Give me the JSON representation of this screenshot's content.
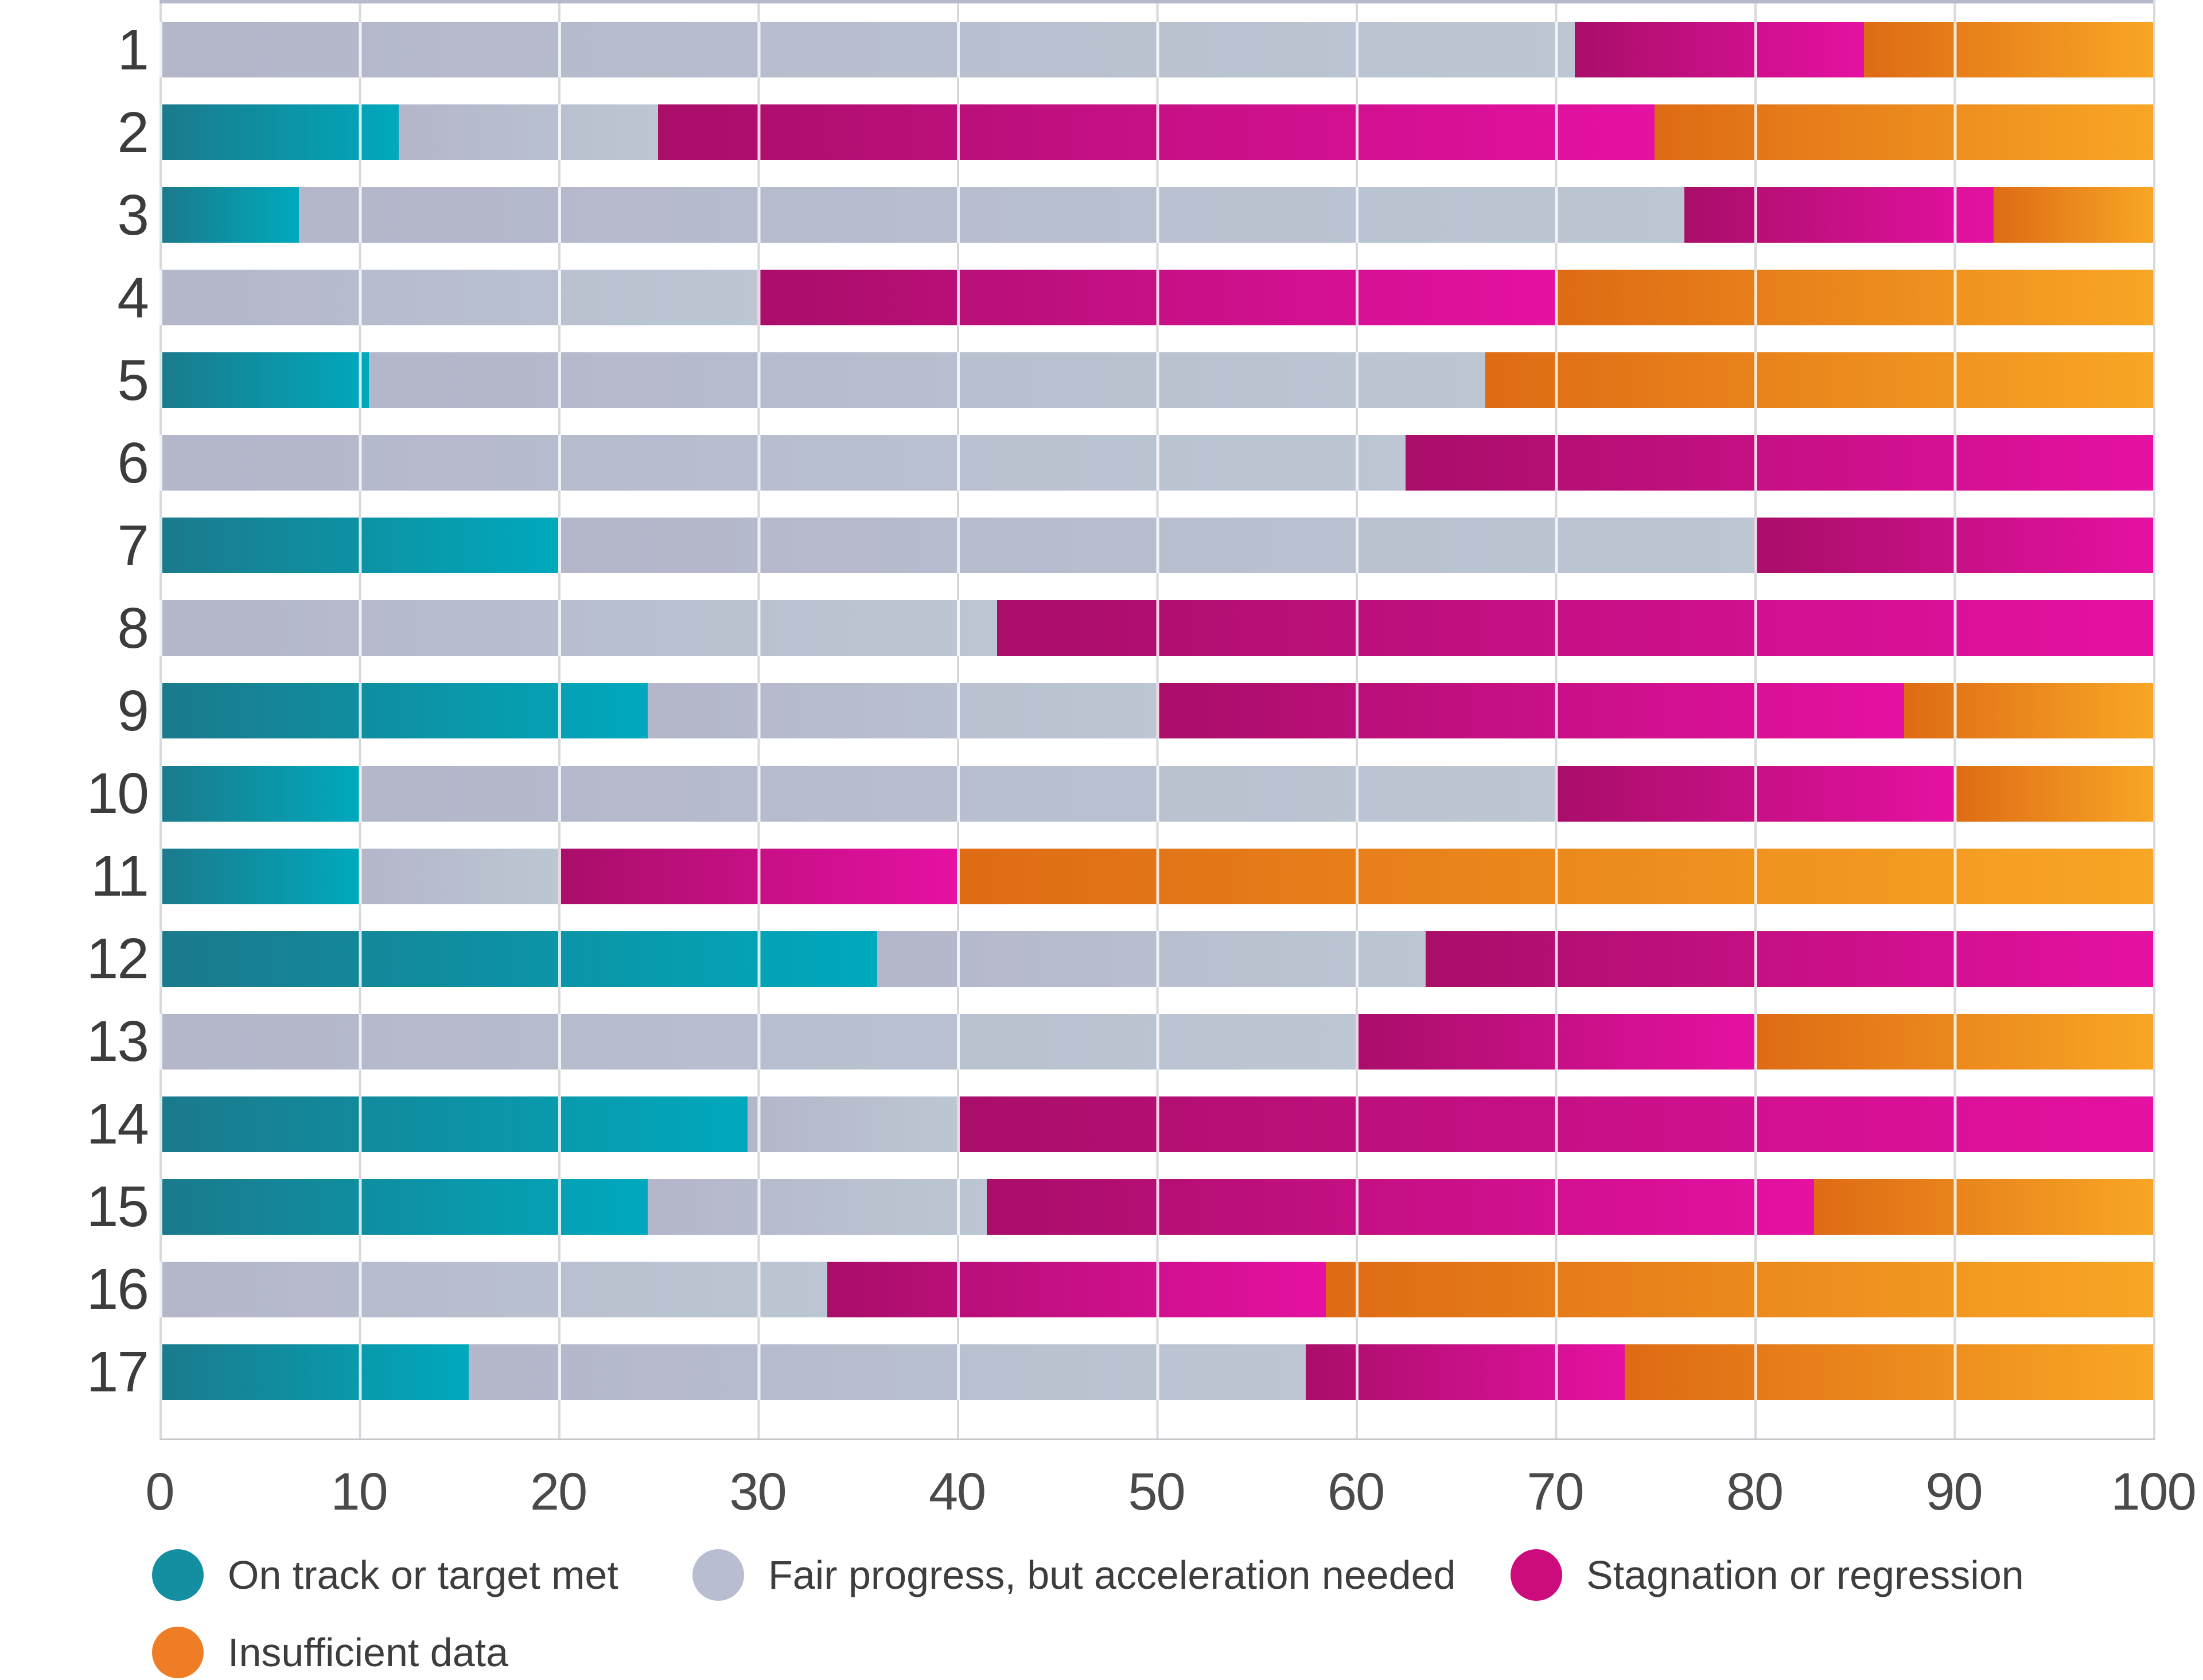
{
  "chart_data": {
    "type": "bar",
    "stacked": true,
    "orientation": "horizontal",
    "title": "",
    "xlabel": "",
    "ylabel": "",
    "xlim": [
      0,
      100
    ],
    "x_ticks": [
      0,
      10,
      20,
      30,
      40,
      50,
      60,
      70,
      80,
      90,
      100
    ],
    "grid": true,
    "legend_position": "bottom",
    "categories": [
      "1",
      "2",
      "3",
      "4",
      "5",
      "6",
      "7",
      "8",
      "9",
      "10",
      "11",
      "12",
      "13",
      "14",
      "15",
      "16",
      "17"
    ],
    "series": [
      {
        "name": "On track or target met",
        "color": "#148EA1",
        "gradient": [
          "#1B7A8C",
          "#00A9BD"
        ],
        "values": [
          0,
          12,
          7,
          0,
          10.5,
          0,
          20,
          0,
          24.5,
          10,
          10,
          36,
          0,
          29.5,
          24.5,
          0,
          15.5
        ]
      },
      {
        "name": "Fair progress, but acceleration needed",
        "color": "#B8BDD1",
        "gradient": [
          "#B4B6CA",
          "#BCC7D3"
        ],
        "values": [
          71,
          13,
          69.5,
          30,
          56,
          62.5,
          60,
          42,
          25.5,
          60,
          10,
          27.5,
          60,
          10.5,
          17,
          33.5,
          42
        ]
      },
      {
        "name": "Stagnation or regression",
        "color": "#CC0B7D",
        "gradient": [
          "#A90E69",
          "#E511A2"
        ],
        "values": [
          14.5,
          50,
          15.5,
          40,
          0,
          37.5,
          20,
          58,
          37.5,
          20,
          20,
          36.5,
          20,
          60,
          41.5,
          25,
          16
        ]
      },
      {
        "name": "Insufficient data",
        "color": "#EE7D25",
        "gradient": [
          "#DE6B15",
          "#F8A625"
        ],
        "values": [
          14.5,
          25,
          8,
          30,
          33.5,
          0,
          0,
          0,
          12.5,
          10,
          60,
          0,
          20,
          0,
          17,
          41.5,
          26.5
        ]
      }
    ]
  },
  "legend": {
    "items": [
      {
        "label": "On track or target met",
        "color": "#148EA1"
      },
      {
        "label": "Fair progress, but acceleration needed",
        "color": "#B8BDD1"
      },
      {
        "label": "Stagnation or regression",
        "color": "#CC0B7D"
      },
      {
        "label": "Insufficient data",
        "color": "#EE7D25"
      }
    ]
  },
  "axis": {
    "tick_labels": [
      "0",
      "10",
      "20",
      "30",
      "40",
      "50",
      "60",
      "70",
      "80",
      "90",
      "100"
    ]
  }
}
